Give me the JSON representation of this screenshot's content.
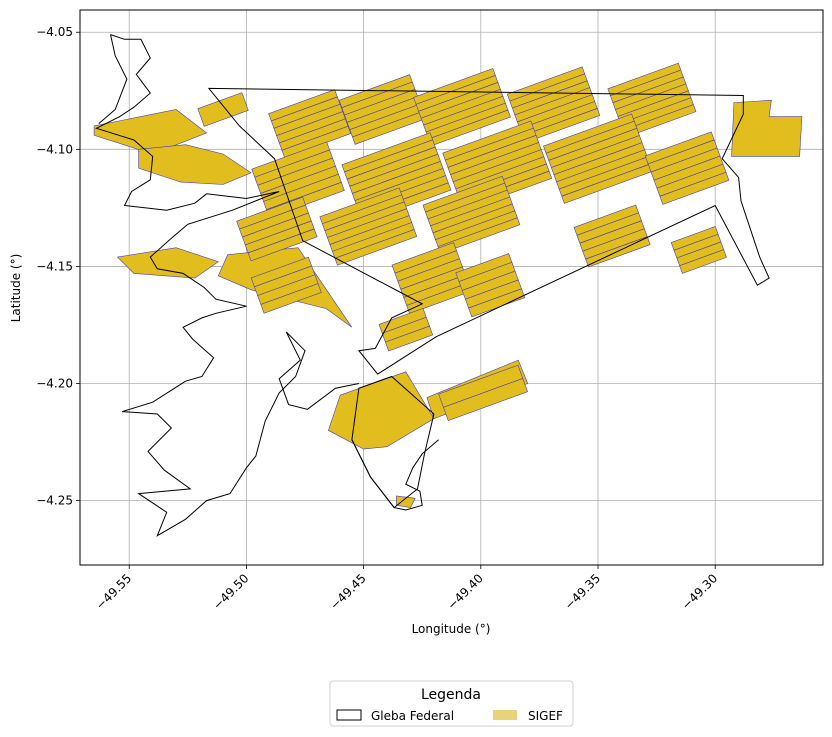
{
  "chart_data": {
    "type": "map",
    "xlabel": "Longitude (°)",
    "ylabel": "Latitude (°)",
    "xlim": [
      -49.571,
      -49.254
    ],
    "ylim": [
      -4.2775,
      -4.0405
    ],
    "xticks": [
      -49.55,
      -49.5,
      -49.45,
      -49.4,
      -49.35,
      -49.3
    ],
    "xtick_labels": [
      "−49.55",
      "−49.50",
      "−49.45",
      "−49.40",
      "−49.35",
      "−49.30"
    ],
    "yticks": [
      -4.05,
      -4.1,
      -4.15,
      -4.2,
      -4.25
    ],
    "ytick_labels": [
      "−4.05",
      "−4.10",
      "−4.15",
      "−4.20",
      "−4.25"
    ],
    "grid": true,
    "legend": {
      "title": "Legenda",
      "placement": "bottom-center",
      "entries": [
        {
          "label": "Gleba Federal",
          "style": "outline",
          "color": "#000000"
        },
        {
          "label": "SIGEF",
          "style": "fill",
          "color": "#E8D27A"
        }
      ]
    },
    "colors": {
      "sigef_fill": "#E1BE1E",
      "sigef_edge": "#4B3FA8",
      "gleba_edge": "#000000",
      "grid": "#b0b0b0"
    },
    "gleba": [
      [
        -49.516,
        -4.074
      ],
      [
        -49.288,
        -4.077
      ],
      [
        -49.288,
        -4.085
      ],
      [
        -49.297,
        -4.104
      ],
      [
        -49.29,
        -4.112
      ],
      [
        -49.289,
        -4.122
      ],
      [
        -49.281,
        -4.146
      ],
      [
        -49.277,
        -4.155
      ],
      [
        -49.282,
        -4.158
      ],
      [
        -49.3,
        -4.124
      ],
      [
        -49.419,
        -4.18
      ],
      [
        -49.444,
        -4.196
      ],
      [
        -49.452,
        -4.186
      ],
      [
        -49.445,
        -4.185
      ],
      [
        -49.438,
        -4.172
      ],
      [
        -49.425,
        -4.166
      ],
      [
        -49.476,
        -4.139
      ],
      [
        -49.488,
        -4.104
      ],
      [
        -49.503,
        -4.09
      ],
      [
        -49.516,
        -4.074
      ]
    ],
    "gleba_south": [
      [
        -49.452,
        -4.202
      ],
      [
        -49.438,
        -4.197
      ],
      [
        -49.42,
        -4.213
      ],
      [
        -49.424,
        -4.23
      ],
      [
        -49.427,
        -4.245
      ],
      [
        -49.437,
        -4.253
      ],
      [
        -49.447,
        -4.24
      ],
      [
        -49.455,
        -4.224
      ],
      [
        -49.452,
        -4.202
      ]
    ],
    "sigef_blocks": [
      {
        "center": [
          -49.473,
          -4.089
        ],
        "length": 0.03,
        "width": 0.02,
        "angle": 20,
        "strips": 6
      },
      {
        "center": [
          -49.442,
          -4.083
        ],
        "length": 0.032,
        "width": 0.02,
        "angle": 20,
        "strips": 6
      },
      {
        "center": [
          -49.408,
          -4.082
        ],
        "length": 0.036,
        "width": 0.022,
        "angle": 20,
        "strips": 7
      },
      {
        "center": [
          -49.369,
          -4.081
        ],
        "length": 0.034,
        "width": 0.022,
        "angle": 20,
        "strips": 7
      },
      {
        "center": [
          -49.327,
          -4.079
        ],
        "length": 0.032,
        "width": 0.022,
        "angle": 20,
        "strips": 7
      },
      {
        "center": [
          -49.478,
          -4.113
        ],
        "length": 0.034,
        "width": 0.022,
        "angle": 20,
        "strips": 6
      },
      {
        "center": [
          -49.436,
          -4.112
        ],
        "length": 0.04,
        "width": 0.026,
        "angle": 20,
        "strips": 8
      },
      {
        "center": [
          -49.393,
          -4.107
        ],
        "length": 0.04,
        "width": 0.026,
        "angle": 20,
        "strips": 8
      },
      {
        "center": [
          -49.35,
          -4.104
        ],
        "length": 0.04,
        "width": 0.026,
        "angle": 20,
        "strips": 8
      },
      {
        "center": [
          -49.312,
          -4.108
        ],
        "length": 0.03,
        "width": 0.022,
        "angle": 20,
        "strips": 6
      },
      {
        "center": [
          -49.487,
          -4.134
        ],
        "length": 0.03,
        "width": 0.018,
        "angle": 20,
        "strips": 5
      },
      {
        "center": [
          -49.448,
          -4.133
        ],
        "length": 0.036,
        "width": 0.022,
        "angle": 20,
        "strips": 7
      },
      {
        "center": [
          -49.404,
          -4.128
        ],
        "length": 0.036,
        "width": 0.022,
        "angle": 20,
        "strips": 7
      },
      {
        "center": [
          -49.344,
          -4.137
        ],
        "length": 0.028,
        "width": 0.018,
        "angle": 20,
        "strips": 5
      },
      {
        "center": [
          -49.307,
          -4.143
        ],
        "length": 0.02,
        "width": 0.014,
        "angle": 20,
        "strips": 4
      },
      {
        "center": [
          -49.421,
          -4.155
        ],
        "length": 0.028,
        "width": 0.022,
        "angle": 20,
        "strips": 6
      },
      {
        "center": [
          -49.396,
          -4.158
        ],
        "length": 0.024,
        "width": 0.02,
        "angle": 20,
        "strips": 5
      },
      {
        "center": [
          -49.432,
          -4.177
        ],
        "length": 0.02,
        "width": 0.012,
        "angle": 20,
        "strips": 3
      },
      {
        "center": [
          -49.399,
          -4.204
        ],
        "length": 0.036,
        "width": 0.012,
        "angle": 20,
        "strips": 2
      },
      {
        "center": [
          -49.483,
          -4.158
        ],
        "length": 0.026,
        "width": 0.016,
        "angle": 20,
        "strips": 4
      },
      {
        "center": [
          -49.51,
          -4.083
        ],
        "length": 0.02,
        "width": 0.008,
        "angle": 20,
        "strips": 1
      }
    ],
    "sigef_polys": [
      [
        [
          -49.565,
          -4.09
        ],
        [
          -49.53,
          -4.083
        ],
        [
          -49.517,
          -4.093
        ],
        [
          -49.54,
          -4.102
        ],
        [
          -49.565,
          -4.094
        ]
      ],
      [
        [
          -49.546,
          -4.1
        ],
        [
          -49.526,
          -4.098
        ],
        [
          -49.51,
          -4.102
        ],
        [
          -49.498,
          -4.11
        ],
        [
          -49.51,
          -4.115
        ],
        [
          -49.528,
          -4.114
        ],
        [
          -49.546,
          -4.108
        ]
      ],
      [
        [
          -49.508,
          -4.145
        ],
        [
          -49.478,
          -4.142
        ],
        [
          -49.455,
          -4.176
        ],
        [
          -49.466,
          -4.168
        ],
        [
          -49.498,
          -4.16
        ],
        [
          -49.512,
          -4.154
        ]
      ],
      [
        [
          -49.46,
          -4.205
        ],
        [
          -49.432,
          -4.195
        ],
        [
          -49.42,
          -4.215
        ],
        [
          -49.44,
          -4.227
        ],
        [
          -49.45,
          -4.228
        ],
        [
          -49.465,
          -4.22
        ]
      ],
      [
        [
          -49.42,
          -4.215
        ],
        [
          -49.38,
          -4.2
        ],
        [
          -49.384,
          -4.19
        ],
        [
          -49.423,
          -4.206
        ]
      ],
      [
        [
          -49.291,
          -4.08
        ],
        [
          -49.276,
          -4.079
        ],
        [
          -49.277,
          -4.086
        ],
        [
          -49.263,
          -4.086
        ],
        [
          -49.264,
          -4.103
        ],
        [
          -49.293,
          -4.103
        ],
        [
          -49.292,
          -4.08
        ]
      ],
      [
        [
          -49.555,
          -4.146
        ],
        [
          -49.53,
          -4.142
        ],
        [
          -49.512,
          -4.148
        ],
        [
          -49.522,
          -4.155
        ],
        [
          -49.548,
          -4.153
        ]
      ],
      [
        [
          -49.436,
          -4.248
        ],
        [
          -49.428,
          -4.249
        ],
        [
          -49.43,
          -4.253
        ],
        [
          -49.436,
          -4.252
        ]
      ]
    ],
    "shoreline": [
      [
        [
          -49.558,
          -4.051
        ],
        [
          -49.552,
          -4.053
        ],
        [
          -49.545,
          -4.053
        ],
        [
          -49.541,
          -4.061
        ],
        [
          -49.547,
          -4.068
        ],
        [
          -49.541,
          -4.076
        ],
        [
          -49.548,
          -4.082
        ],
        [
          -49.554,
          -4.086
        ],
        [
          -49.564,
          -4.091
        ],
        [
          -49.548,
          -4.096
        ],
        [
          -49.54,
          -4.103
        ],
        [
          -49.541,
          -4.113
        ],
        [
          -49.549,
          -4.118
        ],
        [
          -49.552,
          -4.124
        ],
        [
          -49.534,
          -4.126
        ],
        [
          -49.522,
          -4.123
        ],
        [
          -49.517,
          -4.119
        ],
        [
          -49.5,
          -4.121
        ],
        [
          -49.486,
          -4.118
        ],
        [
          -49.506,
          -4.126
        ],
        [
          -49.525,
          -4.132
        ],
        [
          -49.532,
          -4.138
        ],
        [
          -49.541,
          -4.146
        ],
        [
          -49.538,
          -4.151
        ],
        [
          -49.527,
          -4.153
        ],
        [
          -49.518,
          -4.159
        ],
        [
          -49.513,
          -4.164
        ],
        [
          -49.5,
          -4.167
        ],
        [
          -49.513,
          -4.17
        ],
        [
          -49.519,
          -4.172
        ],
        [
          -49.527,
          -4.176
        ],
        [
          -49.523,
          -4.181
        ],
        [
          -49.514,
          -4.189
        ],
        [
          -49.519,
          -4.197
        ],
        [
          -49.526,
          -4.199
        ],
        [
          -49.54,
          -4.208
        ],
        [
          -49.553,
          -4.212
        ],
        [
          -49.538,
          -4.213
        ],
        [
          -49.532,
          -4.219
        ],
        [
          -49.542,
          -4.229
        ],
        [
          -49.535,
          -4.237
        ],
        [
          -49.524,
          -4.245
        ],
        [
          -49.546,
          -4.247
        ],
        [
          -49.534,
          -4.255
        ],
        [
          -49.538,
          -4.265
        ],
        [
          -49.526,
          -4.258
        ],
        [
          -49.517,
          -4.25
        ],
        [
          -49.507,
          -4.247
        ],
        [
          -49.5,
          -4.236
        ],
        [
          -49.496,
          -4.231
        ],
        [
          -49.492,
          -4.216
        ],
        [
          -49.486,
          -4.204
        ],
        [
          -49.479,
          -4.197
        ],
        [
          -49.475,
          -4.186
        ],
        [
          -49.483,
          -4.178
        ],
        [
          -49.477,
          -4.19
        ],
        [
          -49.486,
          -4.198
        ],
        [
          -49.482,
          -4.209
        ],
        [
          -49.474,
          -4.211
        ],
        [
          -49.462,
          -4.202
        ],
        [
          -49.452,
          -4.2
        ]
      ],
      [
        [
          -49.455,
          -4.224
        ],
        [
          -49.447,
          -4.24
        ],
        [
          -49.44,
          -4.249
        ],
        [
          -49.437,
          -4.253
        ],
        [
          -49.432,
          -4.254
        ],
        [
          -49.425,
          -4.252
        ],
        [
          -49.426,
          -4.246
        ],
        [
          -49.432,
          -4.243
        ],
        [
          -49.429,
          -4.236
        ],
        [
          -49.425,
          -4.23
        ],
        [
          -49.418,
          -4.224
        ]
      ],
      [
        [
          -49.563,
          -4.089
        ],
        [
          -49.556,
          -4.083
        ],
        [
          -49.551,
          -4.07
        ],
        [
          -49.556,
          -4.06
        ],
        [
          -49.558,
          -4.051
        ]
      ]
    ]
  }
}
